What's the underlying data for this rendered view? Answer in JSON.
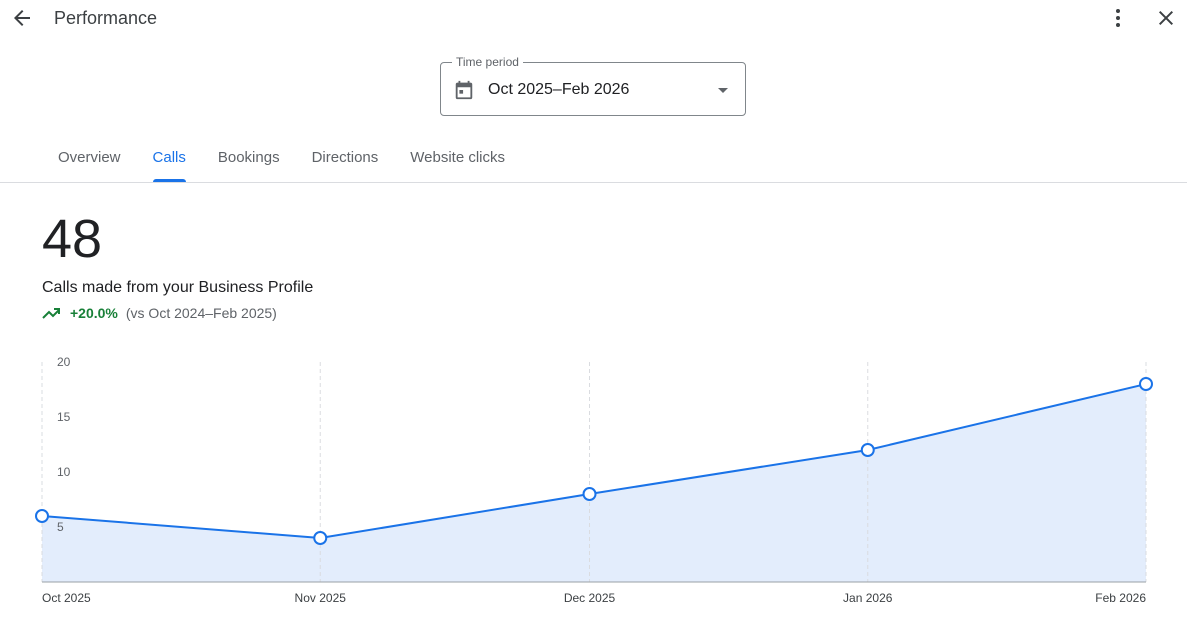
{
  "header": {
    "title": "Performance",
    "back_icon": "arrow-back-icon",
    "more_icon": "more-vert-icon",
    "close_icon": "close-icon"
  },
  "time_period": {
    "label": "Time period",
    "value": "Oct 2025–Feb 2026",
    "icon": "calendar-icon"
  },
  "tabs": [
    {
      "label": "Overview"
    },
    {
      "label": "Calls",
      "active": true
    },
    {
      "label": "Bookings"
    },
    {
      "label": "Directions"
    },
    {
      "label": "Website clicks"
    }
  ],
  "summary": {
    "total": "48",
    "metric_label": "Calls made from your Business Profile",
    "change": "+20.0%",
    "comparison": "(vs Oct 2024–Feb 2025)",
    "trend_icon": "trending-up-icon",
    "change_color": "#188038"
  },
  "chart_data": {
    "type": "area",
    "x": [
      "2025-10-01",
      "2025-11-01",
      "2025-12-01",
      "2026-01-01",
      "2026-02-01"
    ],
    "xtick_labels": [
      "Oct 2025",
      "Nov 2025",
      "Dec 2025",
      "Jan 2026",
      "Feb 2026"
    ],
    "values": [
      6,
      4,
      8,
      12,
      18
    ],
    "yticks": [
      "20",
      "15",
      "10",
      "5"
    ],
    "ylim": [
      0,
      20
    ],
    "grid": "vertical dashed",
    "line_color": "#1a73e8",
    "fill_color": "#e3edfc"
  }
}
